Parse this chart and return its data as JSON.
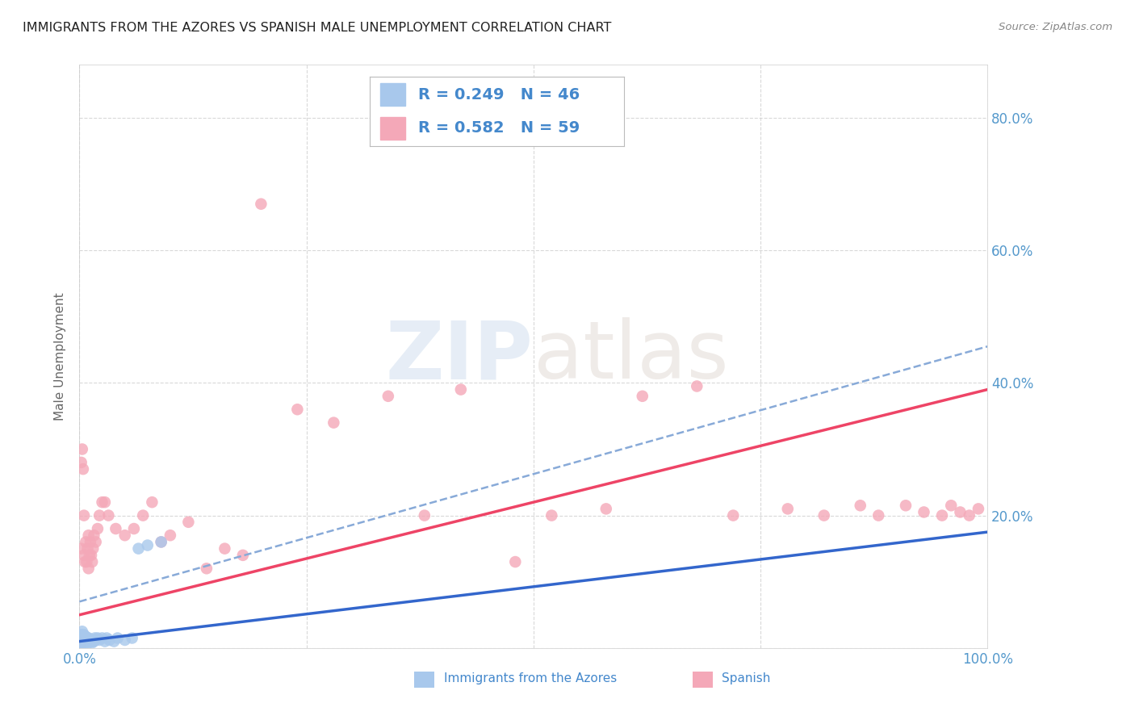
{
  "title": "IMMIGRANTS FROM THE AZORES VS SPANISH MALE UNEMPLOYMENT CORRELATION CHART",
  "source": "Source: ZipAtlas.com",
  "ylabel": "Male Unemployment",
  "xlim": [
    0.0,
    1.0
  ],
  "ylim": [
    0.0,
    0.88
  ],
  "background_color": "#ffffff",
  "grid_color": "#d0d0d0",
  "legend_r1": "R = 0.249",
  "legend_n1": "N = 46",
  "legend_r2": "R = 0.582",
  "legend_n2": "N = 59",
  "azores_color": "#a8c8ec",
  "spanish_color": "#f4a8b8",
  "azores_line_color": "#3366cc",
  "spanish_line_color": "#ee4466",
  "dashed_line_color": "#88aad8",
  "legend_text_color": "#4488cc",
  "title_color": "#222222",
  "source_color": "#888888",
  "tick_color": "#5599cc",
  "azores_x": [
    0.001,
    0.001,
    0.001,
    0.001,
    0.002,
    0.002,
    0.002,
    0.002,
    0.003,
    0.003,
    0.003,
    0.004,
    0.004,
    0.005,
    0.005,
    0.005,
    0.006,
    0.006,
    0.007,
    0.007,
    0.008,
    0.008,
    0.009,
    0.01,
    0.01,
    0.011,
    0.012,
    0.013,
    0.014,
    0.015,
    0.016,
    0.017,
    0.018,
    0.02,
    0.022,
    0.025,
    0.028,
    0.03,
    0.033,
    0.038,
    0.042,
    0.05,
    0.058,
    0.065,
    0.075,
    0.09
  ],
  "azores_y": [
    0.005,
    0.01,
    0.015,
    0.008,
    0.012,
    0.018,
    0.006,
    0.02,
    0.01,
    0.015,
    0.025,
    0.008,
    0.016,
    0.01,
    0.015,
    0.02,
    0.012,
    0.018,
    0.008,
    0.014,
    0.01,
    0.016,
    0.012,
    0.008,
    0.015,
    0.01,
    0.012,
    0.01,
    0.008,
    0.012,
    0.01,
    0.015,
    0.012,
    0.015,
    0.012,
    0.015,
    0.01,
    0.015,
    0.012,
    0.01,
    0.015,
    0.012,
    0.015,
    0.15,
    0.155,
    0.16
  ],
  "spanish_x": [
    0.001,
    0.002,
    0.002,
    0.003,
    0.004,
    0.005,
    0.005,
    0.006,
    0.007,
    0.008,
    0.009,
    0.01,
    0.01,
    0.011,
    0.012,
    0.013,
    0.014,
    0.015,
    0.016,
    0.018,
    0.02,
    0.022,
    0.025,
    0.028,
    0.032,
    0.04,
    0.05,
    0.06,
    0.07,
    0.08,
    0.09,
    0.1,
    0.12,
    0.14,
    0.16,
    0.18,
    0.2,
    0.24,
    0.28,
    0.34,
    0.38,
    0.42,
    0.48,
    0.52,
    0.58,
    0.62,
    0.68,
    0.72,
    0.78,
    0.82,
    0.86,
    0.88,
    0.91,
    0.93,
    0.95,
    0.96,
    0.97,
    0.98,
    0.99
  ],
  "spanish_y": [
    0.008,
    0.15,
    0.28,
    0.3,
    0.27,
    0.14,
    0.2,
    0.13,
    0.16,
    0.13,
    0.15,
    0.12,
    0.17,
    0.14,
    0.16,
    0.14,
    0.13,
    0.15,
    0.17,
    0.16,
    0.18,
    0.2,
    0.22,
    0.22,
    0.2,
    0.18,
    0.17,
    0.18,
    0.2,
    0.22,
    0.16,
    0.17,
    0.19,
    0.12,
    0.15,
    0.14,
    0.67,
    0.36,
    0.34,
    0.38,
    0.2,
    0.39,
    0.13,
    0.2,
    0.21,
    0.38,
    0.395,
    0.2,
    0.21,
    0.2,
    0.215,
    0.2,
    0.215,
    0.205,
    0.2,
    0.215,
    0.205,
    0.2,
    0.21
  ],
  "az_trend": [
    0.0,
    1.0,
    0.01,
    0.175
  ],
  "sp_trend": [
    0.0,
    1.0,
    0.05,
    0.39
  ],
  "dash_trend": [
    0.0,
    1.0,
    0.07,
    0.455
  ]
}
